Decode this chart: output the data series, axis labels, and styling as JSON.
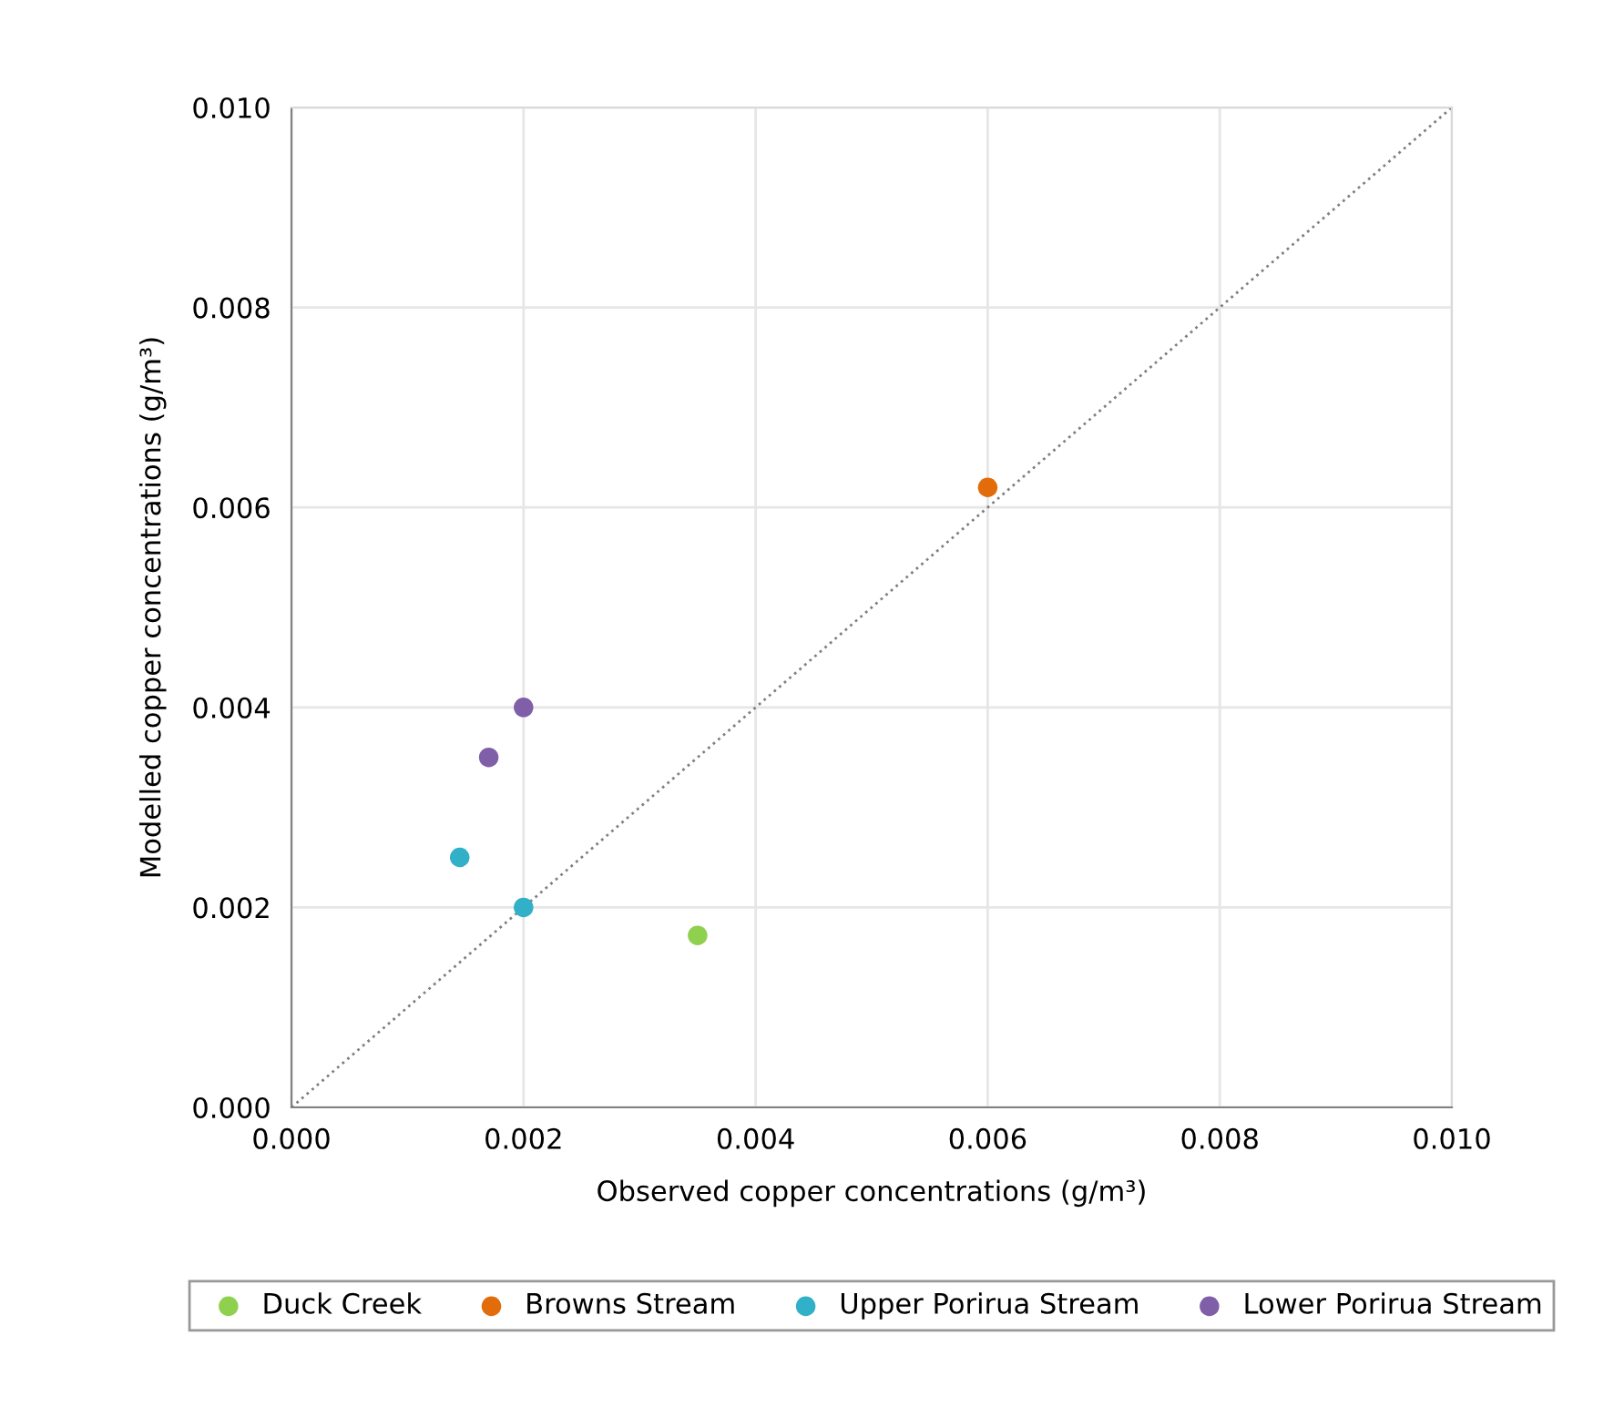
{
  "chart_data": {
    "type": "scatter",
    "xlabel": "Observed copper concentrations (g/m³)",
    "ylabel": "Modelled copper concentrations (g/m³)",
    "series": [
      {
        "name": "Duck Creek",
        "color": "#8fd14f",
        "x": [
          0.0035
        ],
        "values": [
          0.00172
        ]
      },
      {
        "name": "Browns Stream",
        "color": "#e36c0a",
        "x": [
          0.006
        ],
        "values": [
          0.0062
        ]
      },
      {
        "name": "Upper Porirua Stream",
        "color": "#31b0c8",
        "x": [
          0.00145,
          0.002
        ],
        "values": [
          0.0025,
          0.002
        ]
      },
      {
        "name": "Lower Porirua Stream",
        "color": "#7f5fa8",
        "x": [
          0.0017,
          0.002
        ],
        "values": [
          0.0035,
          0.004
        ]
      },
      {
        "type": "line",
        "color": "#808080",
        "line_style": "dotted",
        "marker": "none",
        "x": [
          0,
          0.01
        ],
        "values": [
          0,
          0.01
        ]
      }
    ],
    "xlim": [
      0,
      0.01
    ],
    "ylim": [
      0,
      0.01
    ],
    "xticks": [
      {
        "value": 0,
        "label": "0.000"
      },
      {
        "value": 0.002,
        "label": "0.002"
      },
      {
        "value": 0.004,
        "label": "0.004"
      },
      {
        "value": 0.006,
        "label": "0.006"
      },
      {
        "value": 0.008,
        "label": "0.008"
      },
      {
        "value": 0.01,
        "label": "0.010"
      }
    ],
    "yticks": [
      {
        "value": 0,
        "label": "0.000"
      },
      {
        "value": 0.002,
        "label": "0.002"
      },
      {
        "value": 0.004,
        "label": "0.004"
      },
      {
        "value": 0.006,
        "label": "0.006"
      },
      {
        "value": 0.008,
        "label": "0.008"
      },
      {
        "value": 0.01,
        "label": "0.010"
      }
    ],
    "grid": true,
    "legend": "bottom",
    "marker": "circle"
  }
}
